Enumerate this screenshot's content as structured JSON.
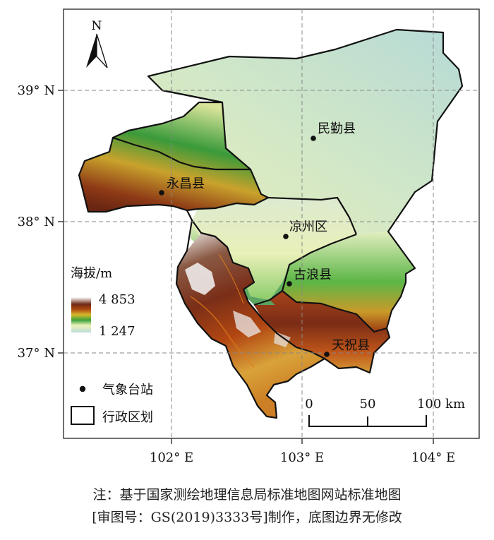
{
  "map": {
    "north_label": "N",
    "lat_labels": [
      "39° N",
      "38° N",
      "37° N"
    ],
    "lon_labels": [
      "102° E",
      "103° E",
      "104° E"
    ],
    "stations": [
      {
        "name": "民勤县"
      },
      {
        "name": "永昌县"
      },
      {
        "name": "凉州区"
      },
      {
        "name": "古浪县"
      },
      {
        "name": "天祝县"
      }
    ],
    "legend": {
      "title": "海拔/m",
      "max": "4 853",
      "min": "1 247",
      "station_label": "气象台站",
      "boundary_label": "行政区划"
    },
    "scalebar": {
      "ticks": [
        "0",
        "50",
        "100 km"
      ]
    }
  },
  "note": {
    "line1": "注：基于国家测绘地理信息局标准地图网站标准地图",
    "line2": "[审图号：GS(2019)3333号]制作，底图边界无修改"
  }
}
